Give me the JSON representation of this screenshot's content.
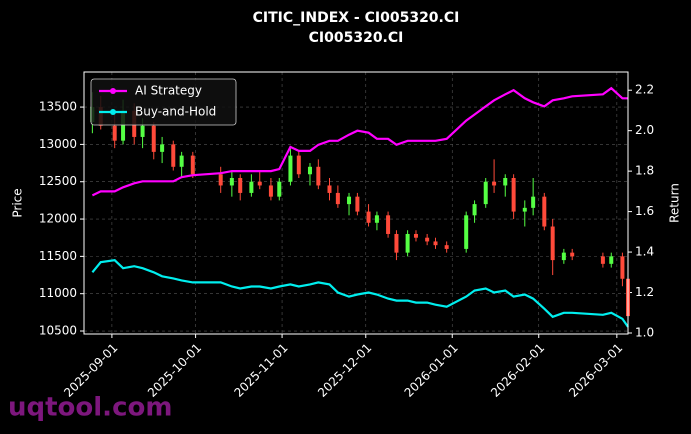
{
  "chart_data": {
    "type": "candlestick",
    "title": "CITIC_INDEX - CI005320.CI",
    "subtitle": "CI005320.CI",
    "ylabel": "Price",
    "y2label": "Return",
    "watermark": "uqtool.com",
    "x": [
      "2025-08-25",
      "2025-08-28",
      "2025-09-02",
      "2025-09-05",
      "2025-09-09",
      "2025-09-12",
      "2025-09-16",
      "2025-09-19",
      "2025-09-23",
      "2025-09-26",
      "2025-09-30",
      "2025-10-10",
      "2025-10-14",
      "2025-10-17",
      "2025-10-21",
      "2025-10-24",
      "2025-10-28",
      "2025-10-31",
      "2025-11-04",
      "2025-11-07",
      "2025-11-11",
      "2025-11-14",
      "2025-11-18",
      "2025-11-21",
      "2025-11-25",
      "2025-11-28",
      "2025-12-02",
      "2025-12-05",
      "2025-12-09",
      "2025-12-12",
      "2025-12-16",
      "2025-12-19",
      "2025-12-23",
      "2025-12-26",
      "2025-12-30",
      "2026-01-06",
      "2026-01-09",
      "2026-01-13",
      "2026-01-16",
      "2026-01-20",
      "2026-01-23",
      "2026-01-27",
      "2026-01-30",
      "2026-02-03",
      "2026-02-06",
      "2026-02-10",
      "2026-02-13",
      "2026-02-24",
      "2026-02-27",
      "2026-03-03",
      "2026-03-05"
    ],
    "open": [
      13300,
      13500,
      13250,
      13050,
      13450,
      13100,
      13250,
      12900,
      13000,
      12700,
      12850,
      12600,
      12450,
      12550,
      12350,
      12500,
      12450,
      12300,
      12500,
      12850,
      12600,
      12700,
      12450,
      12350,
      12200,
      12300,
      12100,
      11950,
      12050,
      11800,
      11550,
      11800,
      11750,
      11700,
      11650,
      11600,
      12050,
      12200,
      12500,
      12450,
      12550,
      12100,
      12150,
      12300,
      11900,
      11450,
      11550,
      11500,
      11400,
      11500,
      11200
    ],
    "high": [
      13700,
      13650,
      13450,
      13600,
      13550,
      13350,
      13300,
      13100,
      13050,
      12900,
      12900,
      12700,
      12650,
      12600,
      12600,
      12650,
      12550,
      12550,
      12950,
      12900,
      12750,
      12800,
      12550,
      12450,
      12350,
      12350,
      12200,
      12100,
      12100,
      11850,
      11850,
      11850,
      11800,
      11750,
      11700,
      12100,
      12250,
      12550,
      12800,
      12600,
      12600,
      12250,
      12550,
      12350,
      12000,
      11600,
      11600,
      11550,
      11550,
      11550,
      11250
    ],
    "low": [
      13150,
      13200,
      12950,
      13000,
      13000,
      12950,
      12800,
      12750,
      12650,
      12550,
      12550,
      12350,
      12300,
      12250,
      12300,
      12400,
      12250,
      12250,
      12450,
      12550,
      12450,
      12400,
      12250,
      12150,
      12050,
      12050,
      11900,
      11850,
      11750,
      11450,
      11500,
      11700,
      11650,
      11600,
      11550,
      11550,
      11950,
      12150,
      12350,
      12300,
      12000,
      11900,
      12050,
      11850,
      11250,
      11400,
      11450,
      11350,
      11350,
      11100,
      10650
    ],
    "close": [
      13500,
      13250,
      13050,
      13450,
      13100,
      13250,
      12900,
      13000,
      12700,
      12850,
      12600,
      12450,
      12550,
      12350,
      12500,
      12450,
      12300,
      12500,
      12850,
      12600,
      12700,
      12450,
      12350,
      12200,
      12300,
      12100,
      11950,
      12050,
      11800,
      11550,
      11800,
      11750,
      11700,
      11650,
      11600,
      12050,
      12200,
      12500,
      12450,
      12550,
      12100,
      12150,
      12300,
      11900,
      11450,
      11550,
      11500,
      11400,
      11500,
      11200,
      10700
    ],
    "up_color": "#55ff44",
    "down_color": "#ff4a3a",
    "series": [
      {
        "name": "AI Strategy",
        "color": "#ff00ff",
        "axis": "y2",
        "values": [
          1.68,
          1.7,
          1.7,
          1.72,
          1.74,
          1.75,
          1.75,
          1.75,
          1.75,
          1.77,
          1.78,
          1.79,
          1.8,
          1.8,
          1.8,
          1.8,
          1.8,
          1.81,
          1.92,
          1.9,
          1.9,
          1.93,
          1.95,
          1.95,
          1.98,
          2.0,
          1.99,
          1.96,
          1.96,
          1.93,
          1.95,
          1.95,
          1.95,
          1.95,
          1.96,
          2.05,
          2.08,
          2.12,
          2.15,
          2.18,
          2.2,
          2.16,
          2.14,
          2.12,
          2.15,
          2.16,
          2.17,
          2.18,
          2.21,
          2.16,
          2.16
        ]
      },
      {
        "name": "Buy-and-Hold",
        "color": "#00eeee",
        "axis": "y2",
        "values": [
          1.3,
          1.35,
          1.36,
          1.32,
          1.33,
          1.32,
          1.3,
          1.28,
          1.27,
          1.26,
          1.25,
          1.25,
          1.23,
          1.22,
          1.23,
          1.23,
          1.22,
          1.23,
          1.24,
          1.23,
          1.24,
          1.25,
          1.24,
          1.2,
          1.18,
          1.19,
          1.2,
          1.19,
          1.17,
          1.16,
          1.16,
          1.15,
          1.15,
          1.14,
          1.13,
          1.18,
          1.21,
          1.22,
          1.2,
          1.21,
          1.18,
          1.19,
          1.17,
          1.12,
          1.08,
          1.1,
          1.1,
          1.09,
          1.1,
          1.07,
          1.03
        ]
      }
    ],
    "xlim": [
      "2025-08-22",
      "2026-03-05"
    ],
    "xticks": [
      "2025-09-01",
      "2025-10-01",
      "2025-11-01",
      "2025-12-01",
      "2026-01-01",
      "2026-02-01",
      "2026-03-01"
    ],
    "ylim": [
      10460,
      13970
    ],
    "yticks": [
      10500,
      11000,
      11500,
      12000,
      12500,
      13000,
      13500
    ],
    "y2lim": [
      0.995,
      2.29
    ],
    "y2ticks": [
      1.0,
      1.2,
      1.4,
      1.6,
      1.8,
      2.0,
      2.2
    ],
    "grid": true,
    "legend": "upper left"
  }
}
